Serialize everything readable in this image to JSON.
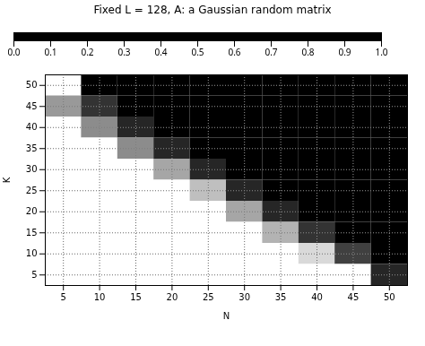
{
  "chart_data": {
    "type": "heatmap",
    "title": "Fixed L = 128, A: a Gaussian random matrix",
    "xlabel": "N",
    "ylabel": "K",
    "x": [
      5,
      10,
      15,
      20,
      25,
      30,
      35,
      40,
      45,
      50
    ],
    "y": [
      50,
      45,
      40,
      35,
      30,
      25,
      20,
      15,
      10,
      5
    ],
    "values": [
      [
        1.0,
        0.0,
        0.0,
        0.0,
        0.0,
        0.0,
        0.0,
        0.0,
        0.0,
        0.0
      ],
      [
        0.6,
        0.2,
        0.0,
        0.0,
        0.0,
        0.0,
        0.0,
        0.0,
        0.0,
        0.0
      ],
      [
        1.0,
        0.55,
        0.15,
        0.0,
        0.0,
        0.0,
        0.0,
        0.0,
        0.0,
        0.0
      ],
      [
        1.0,
        1.0,
        0.55,
        0.15,
        0.0,
        0.0,
        0.0,
        0.0,
        0.0,
        0.0
      ],
      [
        1.0,
        1.0,
        1.0,
        0.65,
        0.15,
        0.0,
        0.0,
        0.0,
        0.0,
        0.0
      ],
      [
        1.0,
        1.0,
        1.0,
        1.0,
        0.75,
        0.15,
        0.0,
        0.0,
        0.0,
        0.0
      ],
      [
        1.0,
        1.0,
        1.0,
        1.0,
        1.0,
        0.65,
        0.15,
        0.0,
        0.0,
        0.0
      ],
      [
        1.0,
        1.0,
        1.0,
        1.0,
        1.0,
        1.0,
        0.7,
        0.2,
        0.0,
        0.0
      ],
      [
        1.0,
        1.0,
        1.0,
        1.0,
        1.0,
        1.0,
        1.0,
        0.85,
        0.25,
        0.0
      ],
      [
        1.0,
        1.0,
        1.0,
        1.0,
        1.0,
        1.0,
        1.0,
        1.0,
        1.0,
        0.15
      ]
    ],
    "xlim": [
      2.5,
      52.5
    ],
    "xticks": [
      5,
      10,
      15,
      20,
      25,
      30,
      35,
      40,
      45,
      50
    ],
    "ylim": [
      2.5,
      52.5
    ],
    "yticks": [
      5,
      10,
      15,
      20,
      25,
      30,
      35,
      40,
      45,
      50
    ],
    "color": "gray",
    "colorbar_range": [
      0,
      1
    ],
    "colorbar_ticks": [
      {
        "value": 0,
        "label": "0.0"
      },
      0.1,
      0.2,
      0.3,
      0.4,
      0.5,
      0.6,
      0.7,
      0.8,
      0.9,
      {
        "value": 1.0,
        "label": "1.0"
      }
    ],
    "grid": true
  }
}
